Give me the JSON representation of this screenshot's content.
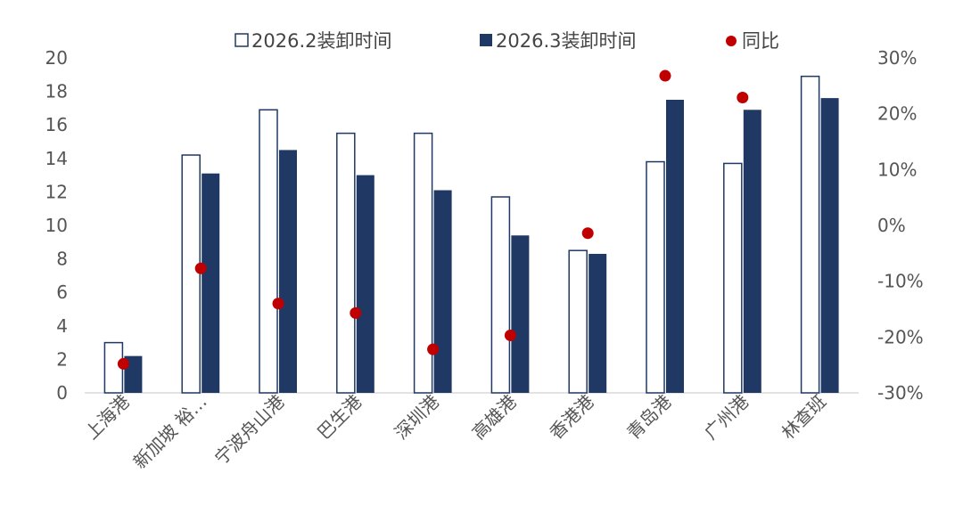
{
  "chart_data": {
    "type": "bar",
    "categories": [
      "上海港",
      "新加坡 裕…",
      "宁波舟山港",
      "巴生港",
      "深圳港",
      "高雄港",
      "香港港",
      "青岛港",
      "广州港",
      "林查班"
    ],
    "series": [
      {
        "name": "2026.2装卸时间",
        "type": "bar",
        "axis": "left",
        "values": [
          3.0,
          14.2,
          16.9,
          15.5,
          15.5,
          11.7,
          8.5,
          13.8,
          13.7,
          18.9
        ]
      },
      {
        "name": "2026.3装卸时间",
        "type": "bar",
        "axis": "left",
        "values": [
          2.2,
          13.1,
          14.5,
          13.0,
          12.1,
          9.4,
          8.3,
          17.5,
          16.9,
          17.6
        ]
      },
      {
        "name": "同比",
        "type": "scatter",
        "axis": "right",
        "values": [
          -0.248,
          -0.077,
          -0.14,
          -0.157,
          -0.222,
          -0.197,
          -0.014,
          0.268,
          0.229,
          null
        ]
      }
    ],
    "y_left": {
      "min": 0,
      "max": 20,
      "step": 2,
      "tick_labels": [
        "0",
        "2",
        "4",
        "6",
        "8",
        "10",
        "12",
        "14",
        "16",
        "18",
        "20"
      ]
    },
    "y_right": {
      "min": -0.3,
      "max": 0.3,
      "step": 0.1,
      "tick_labels": [
        "-30%",
        "-20%",
        "-10%",
        "0%",
        "10%",
        "20%",
        "30%"
      ]
    },
    "legend": {
      "position": "top"
    },
    "grid": false,
    "colors": {
      "bar_2026_2_fill": "#ffffff",
      "bar_2026_2_stroke": "#1f3864",
      "bar_2026_3_fill": "#203864",
      "dot": "#c00000",
      "axis": "#d0d0d0"
    }
  }
}
